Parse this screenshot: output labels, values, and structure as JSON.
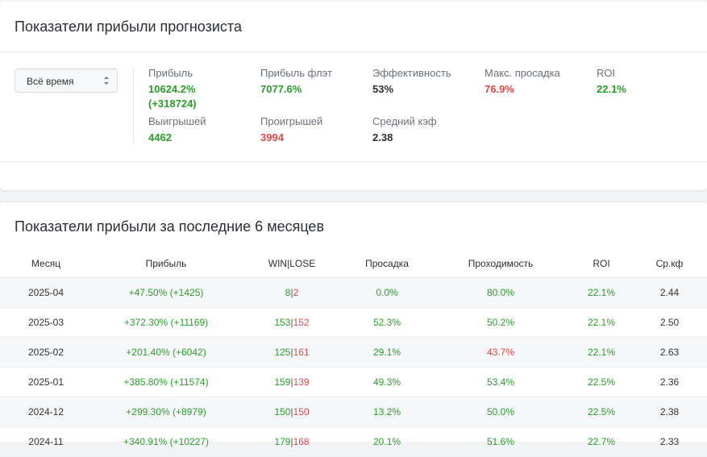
{
  "summary": {
    "title": "Показатели прибыли прогнозиста",
    "period_select": "Всё время",
    "stats": {
      "profit": {
        "label": "Прибыль",
        "value": "10624.2%",
        "value2": "(+318724)"
      },
      "profit_flat": {
        "label": "Прибыль флэт",
        "value": "7077.6%"
      },
      "efficiency": {
        "label": "Эффективность",
        "value": "53%"
      },
      "max_drawdown": {
        "label": "Макс. просадка",
        "value": "76.9%"
      },
      "roi": {
        "label": "ROI",
        "value": "22.1%"
      },
      "wins": {
        "label": "Выигрышей",
        "value": "4462"
      },
      "losses": {
        "label": "Проигрышей",
        "value": "3994"
      },
      "avg_odds": {
        "label": "Средний кэф",
        "value": "2.38"
      }
    }
  },
  "monthly": {
    "title": "Показатели прибыли за последние 6 месяцев",
    "headers": {
      "month": "Месяц",
      "profit": "Прибыль",
      "winlose": "WIN|LOSE",
      "drawdown": "Просадка",
      "pass": "Проходимость",
      "roi": "ROI",
      "avg": "Ср.кф"
    },
    "rows": [
      {
        "month": "2025-04",
        "profit": "+47.50% (+1425)",
        "win": "8",
        "sep": "|",
        "lose": "2",
        "drawdown": "0.0%",
        "pass": "80.0%",
        "roi": "22.1%",
        "avg": "2.44"
      },
      {
        "month": "2025-03",
        "profit": "+372.30% (+11169)",
        "win": "153",
        "sep": "|",
        "lose": "152",
        "drawdown": "52.3%",
        "pass": "50.2%",
        "roi": "22.1%",
        "avg": "2.50"
      },
      {
        "month": "2025-02",
        "profit": "+201.40% (+6042)",
        "win": "125",
        "sep": "|",
        "lose": "161",
        "drawdown": "29.1%",
        "pass": "43.7%",
        "roi": "22.1%",
        "avg": "2.63"
      },
      {
        "month": "2025-01",
        "profit": "+385.80% (+11574)",
        "win": "159",
        "sep": "|",
        "lose": "139",
        "drawdown": "49.3%",
        "pass": "53.4%",
        "roi": "22.5%",
        "avg": "2.36"
      },
      {
        "month": "2024-12",
        "profit": "+299.30% (+8979)",
        "win": "150",
        "sep": "|",
        "lose": "150",
        "drawdown": "13.2%",
        "pass": "50.0%",
        "roi": "22.5%",
        "avg": "2.38"
      },
      {
        "month": "2024-11",
        "profit": "+340.91% (+10227)",
        "win": "179",
        "sep": "|",
        "lose": "168",
        "drawdown": "20.1%",
        "pass": "51.6%",
        "roi": "22.7%",
        "avg": "2.33"
      }
    ]
  },
  "colors": {
    "positive": "#2a9d2a",
    "negative": "#e04848"
  }
}
